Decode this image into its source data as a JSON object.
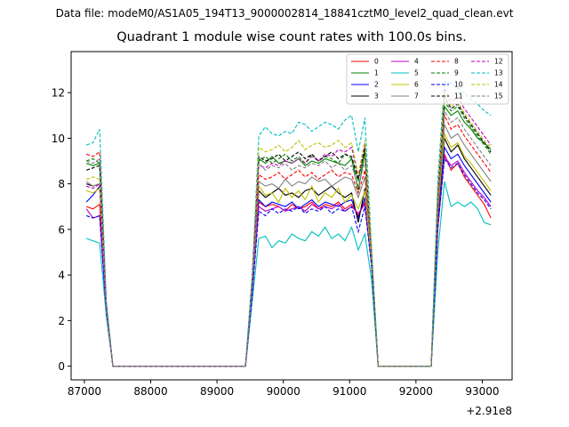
{
  "figure": {
    "suptitle": "Data file: modeM0/AS1A05_194T13_9000002814_18841cztM0_level2_quad_clean.evt"
  },
  "chart_data": {
    "type": "line",
    "title": "Quadrant 1 module wise count rates with 100.0s bins.",
    "xlabel": "",
    "ylabel": "",
    "x_offset_label": "+2.91e8",
    "xlim": [
      86800,
      93450
    ],
    "ylim": [
      -0.6,
      13.8
    ],
    "xticks": [
      87000,
      88000,
      89000,
      90000,
      91000,
      92000,
      93000
    ],
    "xtick_labels": [
      "87000",
      "88000",
      "89000",
      "90000",
      "91000",
      "92000",
      "93000"
    ],
    "yticks": [
      0,
      2,
      4,
      6,
      8,
      10,
      12
    ],
    "ytick_labels": [
      "0",
      "2",
      "4",
      "6",
      "8",
      "10",
      "12"
    ],
    "grid": false,
    "legend_position": "top-right",
    "legend_columns": 4,
    "x": [
      87030,
      87130,
      87230,
      87330,
      87430,
      87530,
      87630,
      87730,
      87830,
      87930,
      88030,
      88130,
      88230,
      88330,
      88430,
      88530,
      88630,
      88730,
      88830,
      88930,
      89030,
      89130,
      89230,
      89330,
      89430,
      89530,
      89630,
      89730,
      89830,
      89930,
      90030,
      90130,
      90230,
      90330,
      90430,
      90530,
      90630,
      90730,
      90830,
      90930,
      91030,
      91130,
      91230,
      91330,
      91430,
      91530,
      91630,
      91730,
      91830,
      91930,
      92030,
      92130,
      92230,
      92330,
      92430,
      92530,
      92630,
      92730,
      92830,
      92930,
      93030,
      93130
    ],
    "series": [
      {
        "name": "0",
        "color": "#ff0000",
        "dash": "solid",
        "values": [
          7.0,
          6.9,
          7.1,
          2.5,
          0,
          0,
          0,
          0,
          0,
          0,
          0,
          0,
          0,
          0,
          0,
          0,
          0,
          0,
          0,
          0,
          0,
          0,
          0,
          0,
          0,
          3.2,
          7.2,
          7.0,
          7.1,
          7.0,
          6.8,
          7.1,
          6.9,
          7.0,
          7.2,
          6.9,
          7.1,
          7.0,
          7.2,
          6.9,
          7.1,
          6.6,
          7.2,
          4.5,
          0,
          0,
          0,
          0,
          0,
          0,
          0,
          0,
          0,
          6.0,
          9.3,
          8.6,
          8.9,
          8.3,
          7.9,
          7.5,
          7.1,
          6.5
        ]
      },
      {
        "name": "1",
        "color": "#008000",
        "dash": "solid",
        "values": [
          8.9,
          8.8,
          8.9,
          2.6,
          0,
          0,
          0,
          0,
          0,
          0,
          0,
          0,
          0,
          0,
          0,
          0,
          0,
          0,
          0,
          0,
          0,
          0,
          0,
          0,
          0,
          3.8,
          9.1,
          8.9,
          9.2,
          8.9,
          9.0,
          8.9,
          9.1,
          8.8,
          9.0,
          8.9,
          9.1,
          9.0,
          8.9,
          8.8,
          9.1,
          7.7,
          9.4,
          4.9,
          0,
          0,
          0,
          0,
          0,
          0,
          0,
          0,
          0,
          7.2,
          11.4,
          11.0,
          11.2,
          10.7,
          10.4,
          10.0,
          9.8,
          9.5
        ]
      },
      {
        "name": "2",
        "color": "#0000ff",
        "dash": "solid",
        "values": [
          7.2,
          7.5,
          7.9,
          2.6,
          0,
          0,
          0,
          0,
          0,
          0,
          0,
          0,
          0,
          0,
          0,
          0,
          0,
          0,
          0,
          0,
          0,
          0,
          0,
          0,
          0,
          3.3,
          7.3,
          7.0,
          7.2,
          7.1,
          7.0,
          7.2,
          6.9,
          7.1,
          7.3,
          7.0,
          7.2,
          7.1,
          7.0,
          7.2,
          7.3,
          6.5,
          7.4,
          4.6,
          0,
          0,
          0,
          0,
          0,
          0,
          0,
          0,
          0,
          6.4,
          9.6,
          9.1,
          9.3,
          8.8,
          8.4,
          8.0,
          7.6,
          7.2
        ]
      },
      {
        "name": "3",
        "color": "#000000",
        "dash": "solid",
        "values": [
          8.0,
          7.9,
          8.0,
          2.6,
          0,
          0,
          0,
          0,
          0,
          0,
          0,
          0,
          0,
          0,
          0,
          0,
          0,
          0,
          0,
          0,
          0,
          0,
          0,
          0,
          0,
          3.5,
          7.7,
          7.4,
          7.6,
          7.8,
          7.5,
          7.6,
          7.4,
          7.7,
          7.8,
          7.5,
          7.7,
          7.9,
          7.6,
          7.4,
          7.6,
          6.3,
          7.8,
          4.7,
          0,
          0,
          0,
          0,
          0,
          0,
          0,
          0,
          0,
          6.7,
          10.0,
          9.4,
          9.7,
          9.1,
          8.7,
          8.3,
          7.9,
          7.5
        ]
      },
      {
        "name": "4",
        "color": "#bf00bf",
        "dash": "solid",
        "values": [
          6.9,
          6.5,
          6.6,
          2.4,
          0,
          0,
          0,
          0,
          0,
          0,
          0,
          0,
          0,
          0,
          0,
          0,
          0,
          0,
          0,
          0,
          0,
          0,
          0,
          0,
          0,
          3.2,
          7.0,
          6.8,
          6.9,
          7.0,
          6.8,
          6.9,
          7.0,
          6.8,
          7.1,
          6.9,
          7.0,
          6.9,
          7.1,
          6.8,
          7.0,
          6.7,
          7.1,
          4.5,
          0,
          0,
          0,
          0,
          0,
          0,
          0,
          0,
          0,
          6.2,
          9.2,
          8.8,
          9.0,
          8.5,
          8.1,
          7.7,
          7.4,
          7.0
        ]
      },
      {
        "name": "5",
        "color": "#00bfbf",
        "dash": "solid",
        "values": [
          5.6,
          5.5,
          5.4,
          2.2,
          0,
          0,
          0,
          0,
          0,
          0,
          0,
          0,
          0,
          0,
          0,
          0,
          0,
          0,
          0,
          0,
          0,
          0,
          0,
          0,
          0,
          2.8,
          5.6,
          5.7,
          5.2,
          5.5,
          5.4,
          5.8,
          5.6,
          5.5,
          5.9,
          5.7,
          6.1,
          5.6,
          5.8,
          5.5,
          6.1,
          5.1,
          5.8,
          3.8,
          0,
          0,
          0,
          0,
          0,
          0,
          0,
          0,
          0,
          5.0,
          8.1,
          7.0,
          7.2,
          7.0,
          7.2,
          6.9,
          6.3,
          6.2
        ]
      },
      {
        "name": "6",
        "color": "#bfbf00",
        "dash": "solid",
        "values": [
          7.7,
          7.6,
          7.8,
          2.5,
          0,
          0,
          0,
          0,
          0,
          0,
          0,
          0,
          0,
          0,
          0,
          0,
          0,
          0,
          0,
          0,
          0,
          0,
          0,
          0,
          0,
          3.4,
          7.9,
          7.5,
          7.6,
          7.2,
          7.8,
          7.4,
          7.7,
          7.3,
          7.9,
          7.2,
          7.6,
          7.4,
          7.8,
          7.2,
          7.5,
          6.9,
          7.7,
          4.6,
          0,
          0,
          0,
          0,
          0,
          0,
          0,
          0,
          0,
          6.8,
          10.2,
          9.6,
          9.8,
          9.2,
          8.9,
          8.5,
          8.1,
          7.7
        ]
      },
      {
        "name": "7",
        "color": "#808080",
        "dash": "solid",
        "values": [
          8.1,
          7.9,
          8.0,
          2.6,
          0,
          0,
          0,
          0,
          0,
          0,
          0,
          0,
          0,
          0,
          0,
          0,
          0,
          0,
          0,
          0,
          0,
          0,
          0,
          0,
          0,
          3.5,
          8.1,
          7.9,
          8.0,
          7.8,
          8.2,
          7.9,
          8.1,
          8.0,
          8.3,
          8.1,
          8.2,
          7.9,
          8.1,
          8.3,
          8.2,
          7.4,
          8.3,
          4.8,
          0,
          0,
          0,
          0,
          0,
          0,
          0,
          0,
          0,
          7.0,
          10.6,
          10.0,
          10.2,
          9.7,
          9.3,
          8.9,
          8.5,
          8.1
        ]
      },
      {
        "name": "8",
        "color": "#ff0000",
        "dash": "dashed",
        "values": [
          9.3,
          9.2,
          9.4,
          2.8,
          0,
          0,
          0,
          0,
          0,
          0,
          0,
          0,
          0,
          0,
          0,
          0,
          0,
          0,
          0,
          0,
          0,
          0,
          0,
          0,
          0,
          3.6,
          8.4,
          8.2,
          8.3,
          8.5,
          8.2,
          8.4,
          8.6,
          8.3,
          8.5,
          8.2,
          8.4,
          8.6,
          8.3,
          8.5,
          8.4,
          7.6,
          8.6,
          4.9,
          0,
          0,
          0,
          0,
          0,
          0,
          0,
          0,
          0,
          7.3,
          11.0,
          10.4,
          10.6,
          10.1,
          9.7,
          9.3,
          8.9,
          8.5
        ]
      },
      {
        "name": "9",
        "color": "#008000",
        "dash": "dashed",
        "values": [
          9.0,
          9.1,
          8.9,
          2.7,
          0,
          0,
          0,
          0,
          0,
          0,
          0,
          0,
          0,
          0,
          0,
          0,
          0,
          0,
          0,
          0,
          0,
          0,
          0,
          0,
          0,
          3.7,
          9.0,
          9.2,
          8.9,
          9.1,
          9.3,
          9.0,
          9.2,
          8.9,
          9.3,
          9.0,
          9.2,
          9.1,
          8.9,
          9.3,
          9.1,
          8.1,
          9.5,
          5.0,
          0,
          0,
          0,
          0,
          0,
          0,
          0,
          0,
          0,
          7.5,
          11.6,
          11.2,
          11.4,
          10.9,
          10.5,
          10.1,
          9.7,
          9.3
        ]
      },
      {
        "name": "10",
        "color": "#0000ff",
        "dash": "dashed",
        "values": [
          6.6,
          6.5,
          6.6,
          2.4,
          0,
          0,
          0,
          0,
          0,
          0,
          0,
          0,
          0,
          0,
          0,
          0,
          0,
          0,
          0,
          0,
          0,
          0,
          0,
          0,
          0,
          3.1,
          6.8,
          6.6,
          6.9,
          6.7,
          6.9,
          6.8,
          7.0,
          6.7,
          6.9,
          6.8,
          7.0,
          6.7,
          6.9,
          6.8,
          7.0,
          5.9,
          7.0,
          4.4,
          0,
          0,
          0,
          0,
          0,
          0,
          0,
          0,
          0,
          6.1,
          9.1,
          8.7,
          8.9,
          8.4,
          8.0,
          7.6,
          7.3,
          6.9
        ]
      },
      {
        "name": "11",
        "color": "#000000",
        "dash": "dashed",
        "values": [
          8.6,
          8.7,
          8.8,
          2.6,
          0,
          0,
          0,
          0,
          0,
          0,
          0,
          0,
          0,
          0,
          0,
          0,
          0,
          0,
          0,
          0,
          0,
          0,
          0,
          0,
          0,
          3.8,
          9.2,
          9.0,
          9.1,
          9.3,
          9.0,
          9.2,
          9.4,
          9.1,
          9.3,
          9.0,
          9.2,
          9.4,
          9.1,
          9.3,
          9.2,
          8.2,
          9.6,
          5.0,
          0,
          0,
          0,
          0,
          0,
          0,
          0,
          0,
          0,
          7.6,
          11.8,
          11.3,
          11.5,
          11.0,
          10.6,
          10.2,
          9.8,
          9.4
        ]
      },
      {
        "name": "12",
        "color": "#bf00bf",
        "dash": "dashed",
        "values": [
          7.9,
          7.8,
          8.0,
          2.6,
          0,
          0,
          0,
          0,
          0,
          0,
          0,
          0,
          0,
          0,
          0,
          0,
          0,
          0,
          0,
          0,
          0,
          0,
          0,
          0,
          0,
          3.6,
          8.8,
          8.7,
          8.9,
          8.8,
          9.0,
          8.9,
          9.1,
          8.9,
          9.2,
          9.0,
          9.3,
          9.2,
          9.5,
          9.4,
          9.6,
          8.3,
          9.8,
          5.0,
          0,
          0,
          0,
          0,
          0,
          0,
          0,
          0,
          0,
          7.8,
          12.2,
          11.6,
          11.8,
          11.3,
          10.9,
          10.5,
          10.1,
          9.7
        ]
      },
      {
        "name": "13",
        "color": "#00bfbf",
        "dash": "dashed",
        "values": [
          9.7,
          9.8,
          10.4,
          2.9,
          0,
          0,
          0,
          0,
          0,
          0,
          0,
          0,
          0,
          0,
          0,
          0,
          0,
          0,
          0,
          0,
          0,
          0,
          0,
          0,
          0,
          4.0,
          10.1,
          10.5,
          10.2,
          10.1,
          10.3,
          10.2,
          10.7,
          10.6,
          10.3,
          10.5,
          10.7,
          10.6,
          10.4,
          10.8,
          11.0,
          9.4,
          10.9,
          5.3,
          0,
          0,
          0,
          0,
          0,
          0,
          0,
          0,
          0,
          8.2,
          12.5,
          12.4,
          12.2,
          12.0,
          11.7,
          11.5,
          11.2,
          11.0
        ]
      },
      {
        "name": "14",
        "color": "#bfbf00",
        "dash": "dashed",
        "values": [
          8.2,
          8.3,
          8.2,
          2.6,
          0,
          0,
          0,
          0,
          0,
          0,
          0,
          0,
          0,
          0,
          0,
          0,
          0,
          0,
          0,
          0,
          0,
          0,
          0,
          0,
          0,
          3.7,
          9.6,
          9.4,
          9.5,
          9.7,
          9.4,
          9.6,
          9.9,
          9.5,
          9.7,
          9.8,
          9.6,
          9.7,
          9.9,
          9.6,
          9.8,
          8.4,
          9.9,
          5.1,
          0,
          0,
          0,
          0,
          0,
          0,
          0,
          0,
          0,
          7.7,
          12.0,
          11.4,
          11.6,
          11.1,
          10.7,
          10.3,
          9.9,
          9.6
        ]
      },
      {
        "name": "15",
        "color": "#808080",
        "dash": "dashed",
        "values": [
          9.0,
          8.9,
          9.1,
          2.7,
          0,
          0,
          0,
          0,
          0,
          0,
          0,
          0,
          0,
          0,
          0,
          0,
          0,
          0,
          0,
          0,
          0,
          0,
          0,
          0,
          0,
          3.6,
          8.9,
          8.6,
          8.8,
          8.7,
          8.9,
          8.6,
          8.8,
          8.7,
          8.9,
          8.8,
          9.0,
          8.7,
          8.9,
          8.6,
          8.8,
          7.9,
          9.0,
          4.9,
          0,
          0,
          0,
          0,
          0,
          0,
          0,
          0,
          0,
          7.4,
          11.2,
          10.7,
          10.9,
          10.4,
          10.0,
          9.6,
          9.2,
          8.8
        ]
      }
    ]
  }
}
